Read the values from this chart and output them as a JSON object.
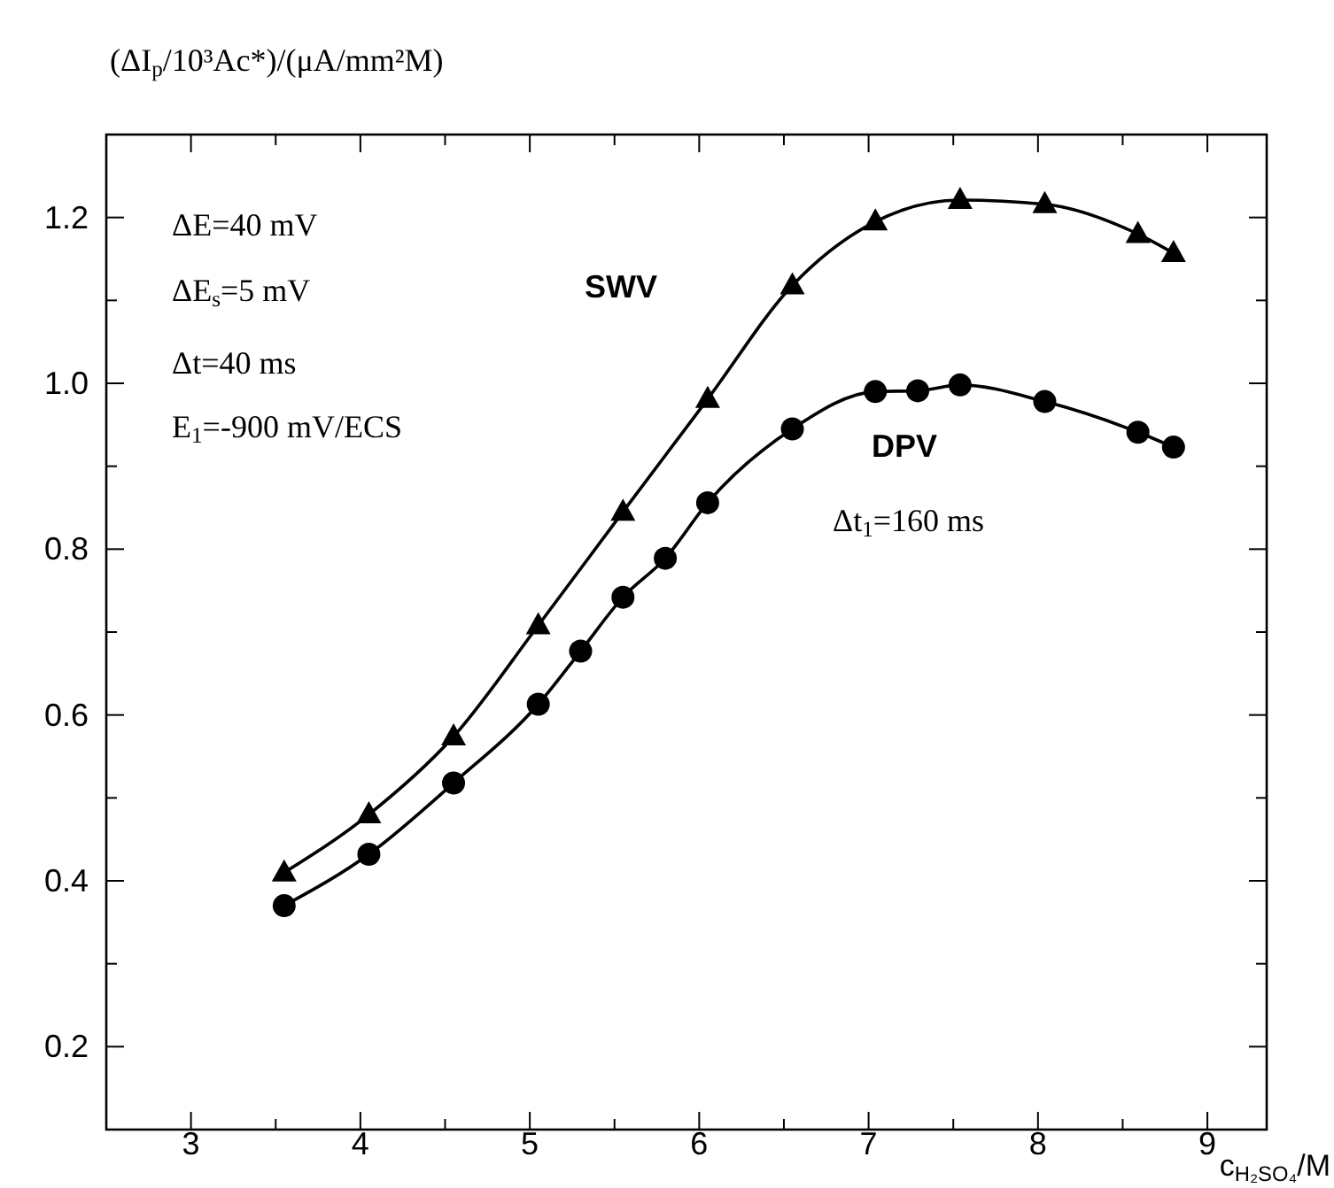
{
  "chart_data": {
    "type": "line",
    "xlabel": "c$_{H₂SO₄}$/M",
    "ylabel": "(ΔI$_{p}$/10³Ac*)/(μA/mm²M)",
    "xlim": [
      2.5,
      9.35
    ],
    "ylim": [
      0.1,
      1.3
    ],
    "xticks": [
      3,
      {
        "value": 3.5,
        "label": null
      },
      4,
      {
        "value": 4.5,
        "label": null
      },
      5,
      {
        "value": 5.5,
        "label": null
      },
      6,
      {
        "value": 6.5,
        "label": null
      },
      7,
      {
        "value": 7.5,
        "label": null
      },
      8,
      {
        "value": 8.5,
        "label": null
      },
      9
    ],
    "yticks": [
      {
        "value": 0.2,
        "label": "0.2"
      },
      {
        "value": 0.3,
        "label": null
      },
      {
        "value": 0.4,
        "label": "0.4"
      },
      {
        "value": 0.5,
        "label": null
      },
      {
        "value": 0.6,
        "label": "0.6"
      },
      {
        "value": 0.7,
        "label": null
      },
      {
        "value": 0.8,
        "label": "0.8"
      },
      {
        "value": 0.9,
        "label": null
      },
      {
        "value": 1.0,
        "label": "1.0"
      },
      {
        "value": 1.1,
        "label": null
      },
      {
        "value": 1.2,
        "label": "1.2"
      }
    ],
    "grid": false,
    "line_style": "solid",
    "series": [
      {
        "name": "SWV",
        "color": "#000000",
        "marker": "triangle",
        "x": [
          3.55,
          4.05,
          4.55,
          5.05,
          5.55,
          6.05,
          6.55,
          7.04,
          7.54,
          8.04,
          8.59,
          8.8
        ],
        "values": [
          0.41,
          0.48,
          0.574,
          0.708,
          0.845,
          0.981,
          1.118,
          1.195,
          1.221,
          1.216,
          1.18,
          1.157
        ]
      },
      {
        "name": "DPV",
        "color": "#000000",
        "marker": "circle",
        "x": [
          3.55,
          4.05,
          4.55,
          5.05,
          5.3,
          5.55,
          5.8,
          6.05,
          6.55,
          7.04,
          7.29,
          7.54,
          8.04,
          8.59,
          8.8
        ],
        "values": [
          0.37,
          0.432,
          0.518,
          0.613,
          0.677,
          0.742,
          0.789,
          0.856,
          0.945,
          0.99,
          0.991,
          0.998,
          0.978,
          0.941,
          0.923
        ]
      }
    ],
    "annotations": [
      "ΔE=40 mV",
      "ΔE$_{s}$=5 mV",
      "Δt=40 ms",
      "E$_{1}$=-900 mV/ECS",
      "Δt$_{1}$=160 ms"
    ]
  }
}
